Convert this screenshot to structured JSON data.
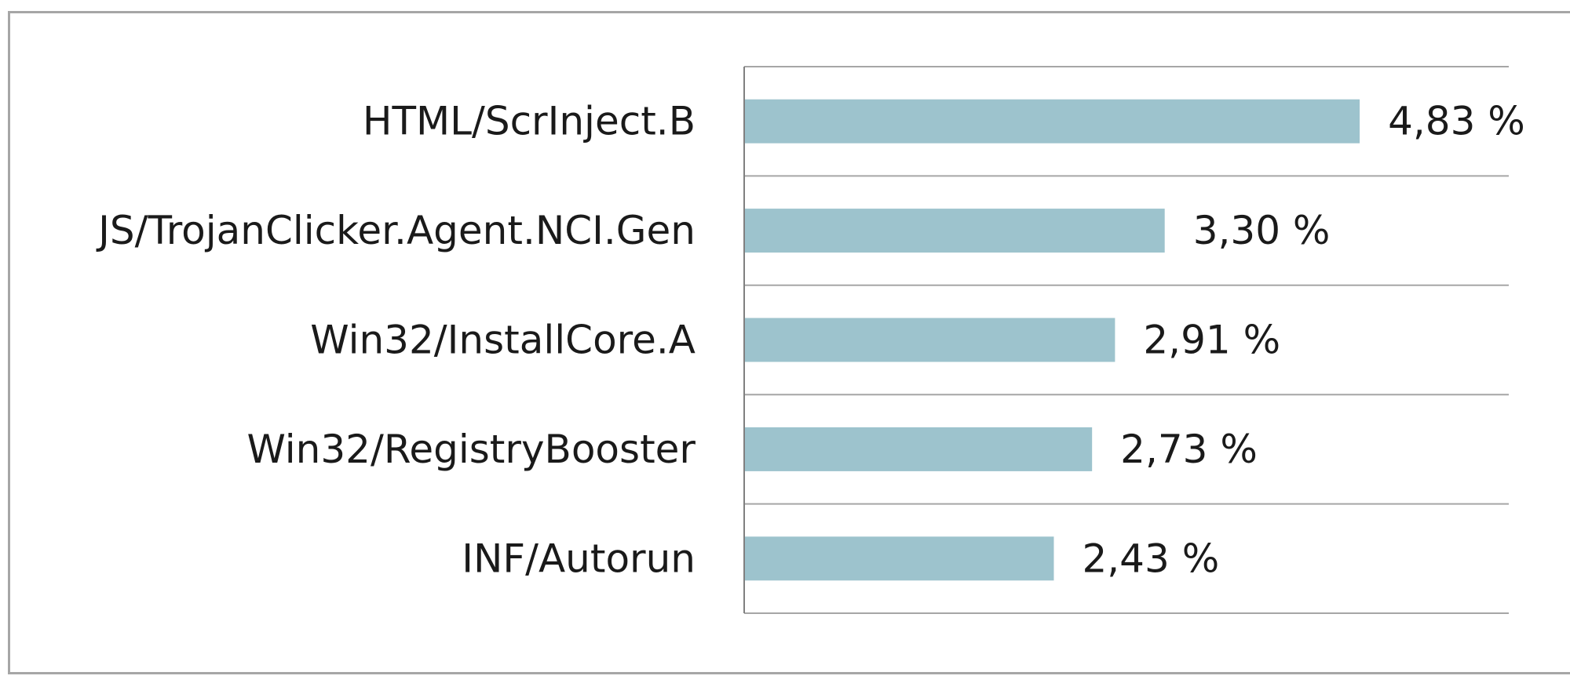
{
  "chart_data": {
    "type": "bar",
    "orientation": "horizontal",
    "title": "",
    "xlabel": "",
    "ylabel": "",
    "categories": [
      "HTML/ScrInject.B",
      "JS/TrojanClicker.Agent.NCI.Gen",
      "Win32/InstallCore.A",
      "Win32/RegistryBooster",
      "INF/Autorun"
    ],
    "values": [
      4.83,
      3.3,
      2.91,
      2.73,
      2.43
    ],
    "value_labels": [
      "4,83 %",
      "3,30 %",
      "2,91 %",
      "2,73 %",
      "2,43 %"
    ],
    "xlim": [
      0,
      6
    ],
    "grid": true,
    "legend": "none",
    "colors": {
      "bar": "#9dc3cd",
      "grid": "#a6a6a6",
      "axis": "#808080",
      "text": "#1a1a1a"
    }
  }
}
